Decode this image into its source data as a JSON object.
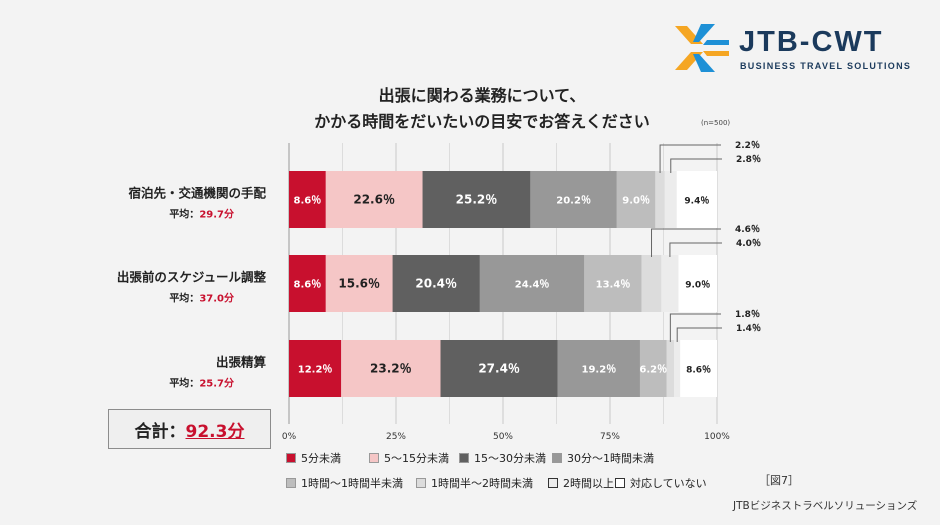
{
  "brand": {
    "name": "JTB-CWT",
    "tagline": "BUSINESS TRAVEL SOLUTIONS",
    "colors": {
      "orange": "#f5a623",
      "blue": "#1e90d6",
      "navy": "#1b3a5c"
    }
  },
  "chart_data": {
    "type": "bar",
    "orientation": "horizontal-stacked-100",
    "title_line1": "出張に関わる業務について、",
    "title_line2": "かかる時間をだいたいの目安でお答えください",
    "sample_note": "(n=500)",
    "xlim": [
      0,
      100
    ],
    "x_ticks": [
      0,
      25,
      50,
      75,
      100
    ],
    "x_tick_labels": [
      "0%",
      "25%",
      "50%",
      "75%",
      "100%"
    ],
    "categories": [
      {
        "name": "宿泊先・交通機関の手配",
        "avg_label": "平均：",
        "avg_value": "29.7分"
      },
      {
        "name": "出張前のスケジュール調整",
        "avg_label": "平均：",
        "avg_value": "37.0分"
      },
      {
        "name": "出張精算",
        "avg_label": "平均：",
        "avg_value": "25.7分"
      }
    ],
    "series": [
      {
        "name": "5分未満",
        "color": "#c8102e",
        "text_color": "#ffffff",
        "values": [
          8.6,
          8.6,
          12.2
        ],
        "labels": [
          "8.6％",
          "8.6％",
          "12.2％"
        ]
      },
      {
        "name": "5～15分未満",
        "color": "#f5c6c6",
        "text_color": "#222222",
        "values": [
          22.6,
          15.6,
          23.2
        ],
        "labels": [
          "22.6％",
          "15.6％",
          "23.2％"
        ]
      },
      {
        "name": "15～30分未満",
        "color": "#606060",
        "text_color": "#ffffff",
        "values": [
          25.2,
          20.4,
          27.4
        ],
        "labels": [
          "25.2％",
          "20.4％",
          "27.4％"
        ]
      },
      {
        "name": "30分～1時間未満",
        "color": "#989898",
        "text_color": "#ffffff",
        "values": [
          20.2,
          24.4,
          19.2
        ],
        "labels": [
          "20.2％",
          "24.4％",
          "19.2％"
        ]
      },
      {
        "name": "1時間～1時間半未満",
        "color": "#bdbdbd",
        "text_color": "#ffffff",
        "values": [
          9.0,
          13.4,
          6.2
        ],
        "labels": [
          "9.0％",
          "13.4％",
          "6.2％"
        ]
      },
      {
        "name": "1時間半～2時間未満",
        "color": "#dcdcdc",
        "text_color": "#222222",
        "values": [
          2.2,
          4.6,
          1.8
        ],
        "labels": [
          "2.2％",
          "4.6％",
          "1.8％"
        ]
      },
      {
        "name": "2時間以上",
        "color": "#ececec",
        "text_color": "#222222",
        "values": [
          2.8,
          4.0,
          1.4
        ],
        "labels": [
          "2.8％",
          "4.0％",
          "1.4％"
        ]
      },
      {
        "name": "対応していない",
        "color": "#ffffff",
        "text_color": "#222222",
        "values": [
          9.4,
          9.0,
          8.6
        ],
        "labels": [
          "9.4％",
          "9.0％",
          "8.6％"
        ]
      }
    ]
  },
  "total": {
    "label": "合計：",
    "value": "92.3分"
  },
  "figure_note": "［図7］",
  "footer": {
    "org": "JTBビジネストラベルソリューションズ"
  }
}
